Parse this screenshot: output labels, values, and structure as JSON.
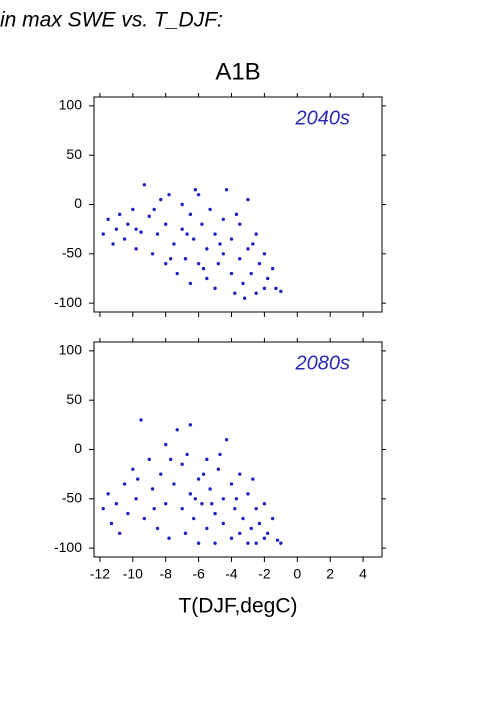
{
  "page_title": "in max SWE vs. T_DJF:",
  "scenario": "A1B",
  "chart_data": [
    {
      "type": "scatter",
      "title": "2040s",
      "color": "#2020c0",
      "title_color": "#2a2ab4",
      "xlim": [
        -12.36,
        5.15
      ],
      "ylim": [
        -109,
        109
      ],
      "xticks": [
        -12,
        -10,
        -8,
        -6,
        -4,
        -2,
        0,
        2,
        4
      ],
      "yticks": [
        -100,
        -50,
        0,
        50,
        100
      ],
      "xtick_labels": false,
      "x": [
        -11.8,
        -11.5,
        -11.2,
        -11,
        -10.8,
        -10.5,
        -10.3,
        -10,
        -9.8,
        -9.5,
        -9.3,
        -9,
        -8.8,
        -8.5,
        -8.3,
        -8,
        -8,
        -7.8,
        -7.5,
        -7.3,
        -7,
        -7,
        -6.8,
        -6.5,
        -6.5,
        -6.3,
        -6,
        -6,
        -5.8,
        -5.5,
        -5.5,
        -5.3,
        -5,
        -5,
        -4.8,
        -4.5,
        -4.5,
        -4.3,
        -4,
        -4,
        -3.8,
        -3.5,
        -3.5,
        -3.3,
        -3,
        -3,
        -2.8,
        -2.5,
        -2.5,
        -2.3,
        -2,
        -2,
        -1.8,
        -1.5,
        -1.3,
        -1,
        -9.8,
        -8.7,
        -7.7,
        -6.7,
        -5.7,
        -4.7,
        -3.7,
        -2.7,
        -3.2,
        -6.2
      ],
      "values": [
        -30,
        -15,
        -40,
        -25,
        -10,
        -35,
        -20,
        -5,
        -45,
        -28,
        20,
        -12,
        -50,
        -30,
        5,
        -60,
        -20,
        10,
        -40,
        -70,
        -25,
        0,
        -55,
        -10,
        -80,
        -35,
        -60,
        10,
        -20,
        -75,
        -45,
        -5,
        -30,
        -85,
        -60,
        -15,
        -50,
        15,
        -70,
        -35,
        -90,
        -55,
        -20,
        -80,
        -45,
        5,
        -70,
        -90,
        -30,
        -60,
        -85,
        -50,
        -75,
        -65,
        -85,
        -88,
        -25,
        -5,
        -55,
        -30,
        -65,
        -40,
        -10,
        -40,
        -95,
        15
      ]
    },
    {
      "type": "scatter",
      "title": "2080s",
      "color": "#2020c0",
      "title_color": "#2a2ab4",
      "xlim": [
        -12.36,
        5.15
      ],
      "ylim": [
        -109,
        109
      ],
      "xticks": [
        -12,
        -10,
        -8,
        -6,
        -4,
        -2,
        0,
        2,
        4
      ],
      "yticks": [
        -100,
        -50,
        0,
        50,
        100
      ],
      "xtick_labels": true,
      "xlabel": "T(DJF,degC)",
      "x": [
        -11.8,
        -11.5,
        -11.3,
        -11,
        -10.8,
        -10.5,
        -10.3,
        -10,
        -9.8,
        -9.5,
        -9.3,
        -9,
        -8.8,
        -8.5,
        -8.3,
        -8,
        -8,
        -7.8,
        -7.5,
        -7.3,
        -7,
        -7,
        -6.8,
        -6.5,
        -6.5,
        -6.3,
        -6,
        -6,
        -5.8,
        -5.5,
        -5.5,
        -5.3,
        -5,
        -5,
        -4.8,
        -4.5,
        -4.5,
        -4.3,
        -4,
        -4,
        -3.8,
        -3.5,
        -3.5,
        -3.3,
        -3,
        -3,
        -2.8,
        -2.5,
        -2.5,
        -2.3,
        -2,
        -2,
        -1.8,
        -1.5,
        -1.2,
        -1,
        -9.7,
        -8.7,
        -7.7,
        -6.7,
        -5.7,
        -4.7,
        -3.7,
        -2.7,
        -6.2,
        -5.2
      ],
      "values": [
        -60,
        -45,
        -75,
        -55,
        -85,
        -35,
        -65,
        -20,
        -50,
        30,
        -70,
        -10,
        -40,
        -80,
        -25,
        5,
        -55,
        -90,
        -35,
        20,
        -60,
        -15,
        -85,
        -45,
        25,
        -70,
        -30,
        -95,
        -55,
        -10,
        -80,
        -40,
        -65,
        -95,
        -20,
        -75,
        -50,
        10,
        -90,
        -35,
        -60,
        -85,
        -25,
        -70,
        -95,
        -45,
        -80,
        -60,
        -95,
        -75,
        -90,
        -55,
        -85,
        -70,
        -92,
        -95,
        -30,
        -60,
        -10,
        -5,
        -25,
        -5,
        -50,
        -30,
        -50,
        -55
      ]
    }
  ]
}
